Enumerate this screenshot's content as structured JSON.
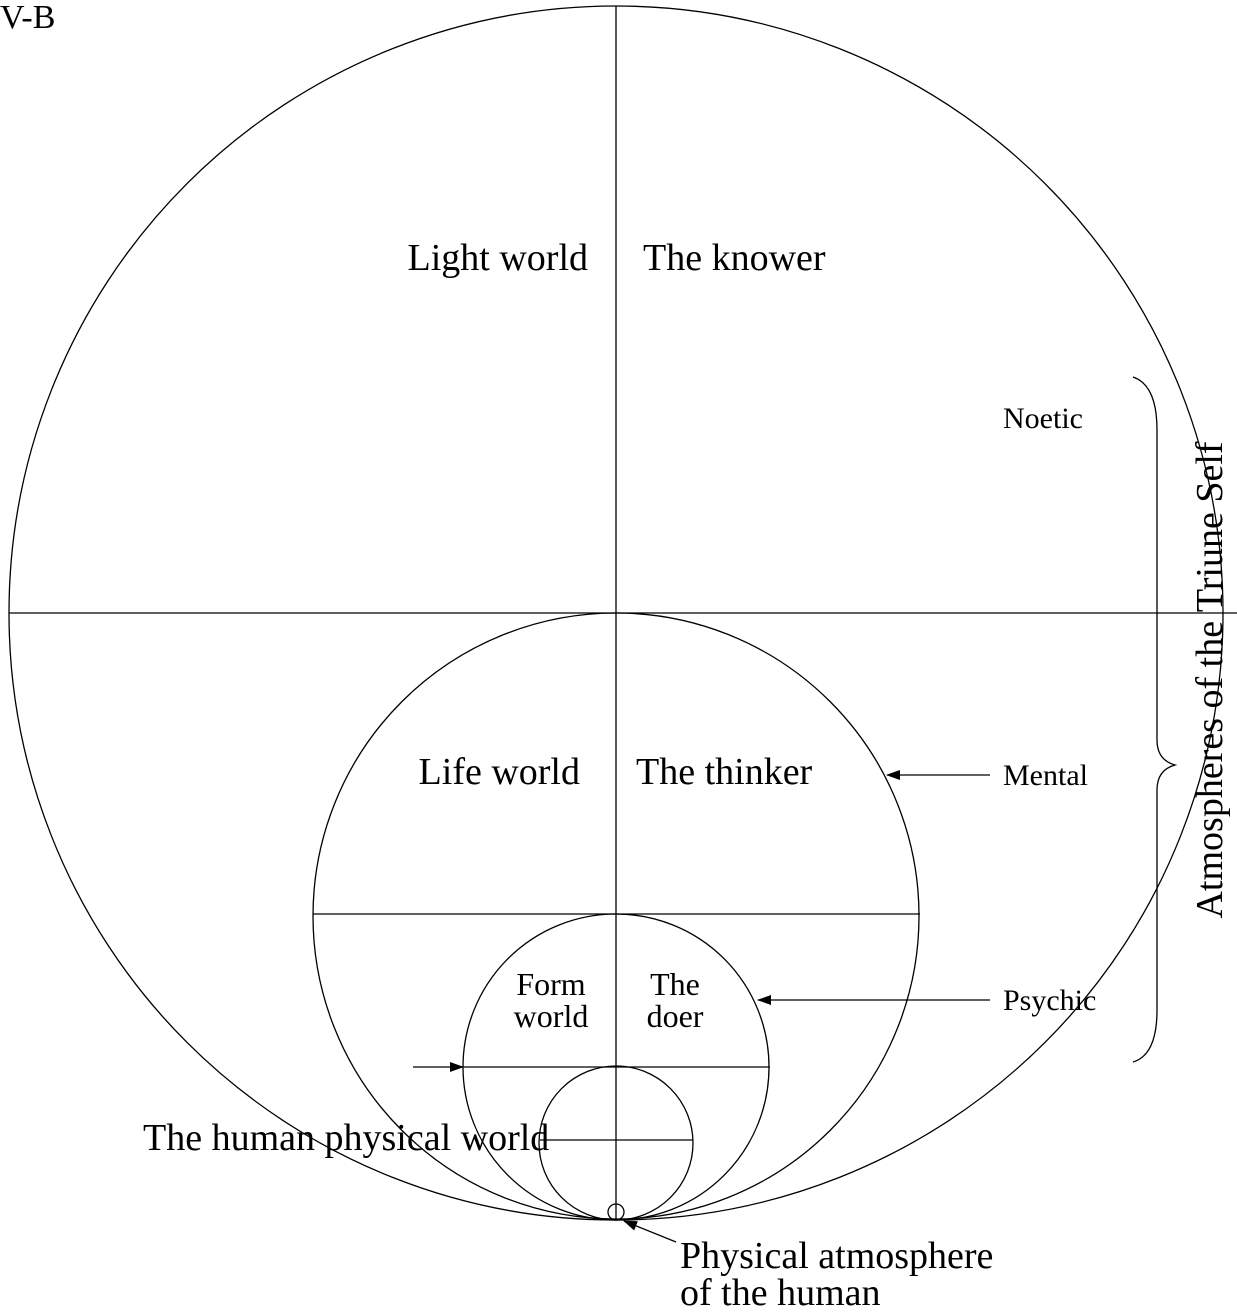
{
  "figure_id": "V-B",
  "quadrants": {
    "light_world": "Light world",
    "knower": "The knower",
    "life_world": "Life world",
    "thinker": "The thinker",
    "form_world_1": "Form",
    "form_world_2": "world",
    "doer_1": "The",
    "doer_2": "doer"
  },
  "atmospheres": {
    "noetic": "Noetic",
    "mental": "Mental",
    "psychic": "Psychic",
    "group": "Atmospheres of the Triune Self"
  },
  "physical_world": "The human physical world",
  "physical_atmosphere_1": "Physical atmosphere",
  "physical_atmosphere_2": "of the human"
}
